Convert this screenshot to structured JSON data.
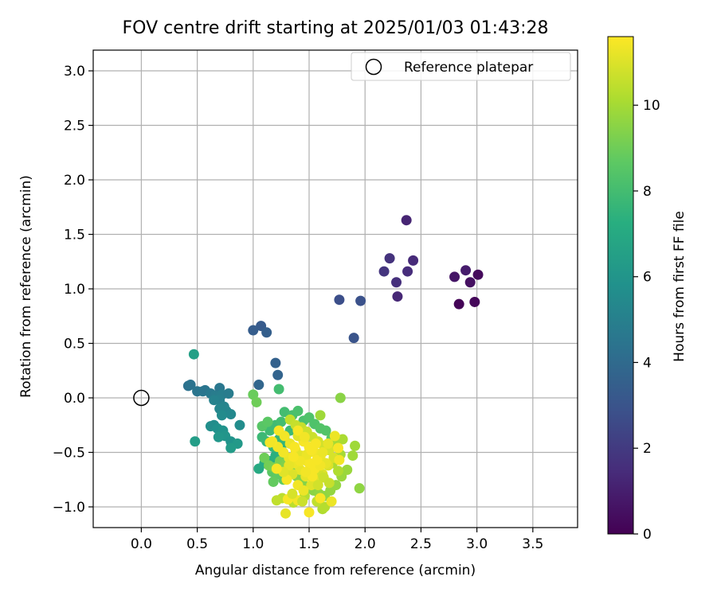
{
  "chart_data": {
    "type": "scatter",
    "title": "FOV centre drift starting at 2025/01/03 01:43:28",
    "xlabel": "Angular distance from reference (arcmin)",
    "ylabel": "Rotation from reference (arcmin)",
    "xlim": [
      -0.43,
      3.9
    ],
    "ylim": [
      -1.19,
      3.19
    ],
    "xticks": [
      0.0,
      0.5,
      1.0,
      1.5,
      2.0,
      2.5,
      3.0,
      3.5
    ],
    "xtick_labels": [
      "0.0",
      "0.5",
      "1.0",
      "1.5",
      "2.0",
      "2.5",
      "3.0",
      "3.5"
    ],
    "yticks": [
      -1.0,
      -0.5,
      0.0,
      0.5,
      1.0,
      1.5,
      2.0,
      2.5,
      3.0
    ],
    "ytick_labels": [
      "−1.0",
      "−0.5",
      "0.0",
      "0.5",
      "1.0",
      "1.5",
      "2.0",
      "2.5",
      "3.0"
    ],
    "grid": true,
    "legend": {
      "position": "top-right",
      "entries": [
        {
          "label": "Reference platepar",
          "marker": "open-circle"
        }
      ]
    },
    "reference_point": {
      "x": 0.0,
      "y": 0.0
    },
    "colorbar": {
      "label": "Hours from first FF file",
      "range": [
        0,
        11.6
      ],
      "ticks": [
        0,
        2,
        4,
        6,
        8,
        10
      ],
      "tick_labels": [
        "0",
        "2",
        "4",
        "6",
        "8",
        "10"
      ],
      "colormap": "viridis"
    },
    "series": [
      {
        "points": [
          [
            2.84,
            0.86,
            0.1
          ],
          [
            2.98,
            0.88,
            0.2
          ],
          [
            3.01,
            1.13,
            0.3
          ],
          [
            2.94,
            1.06,
            0.5
          ],
          [
            2.8,
            1.11,
            0.7
          ],
          [
            2.9,
            1.17,
            0.9
          ],
          [
            2.37,
            1.63,
            1.2
          ],
          [
            2.29,
            0.93,
            1.3
          ],
          [
            2.43,
            1.26,
            1.4
          ],
          [
            2.38,
            1.16,
            1.5
          ],
          [
            2.28,
            1.06,
            1.6
          ],
          [
            2.22,
            1.28,
            1.7
          ],
          [
            2.17,
            1.16,
            1.8
          ],
          [
            1.77,
            0.9,
            2.8
          ],
          [
            1.96,
            0.89,
            2.9
          ],
          [
            1.9,
            0.55,
            3.0
          ],
          [
            1.07,
            0.66,
            3.3
          ],
          [
            1.0,
            0.62,
            3.4
          ],
          [
            1.12,
            0.6,
            3.5
          ],
          [
            1.2,
            0.32,
            3.6
          ],
          [
            1.22,
            0.21,
            3.7
          ],
          [
            1.05,
            0.12,
            3.8
          ],
          [
            0.42,
            0.11,
            4.3
          ],
          [
            0.44,
            0.12,
            4.4
          ],
          [
            0.5,
            0.06,
            4.5
          ],
          [
            0.55,
            0.06,
            4.6
          ],
          [
            0.57,
            0.07,
            4.5
          ],
          [
            0.62,
            0.04,
            4.7
          ],
          [
            0.7,
            0.09,
            4.6
          ],
          [
            0.66,
            0.02,
            4.8
          ],
          [
            0.72,
            0.03,
            4.9
          ],
          [
            0.78,
            0.04,
            4.8
          ],
          [
            0.7,
            -0.02,
            5.0
          ],
          [
            0.65,
            -0.02,
            5.1
          ],
          [
            0.74,
            -0.08,
            5.2
          ],
          [
            0.7,
            -0.1,
            5.3
          ],
          [
            0.76,
            -0.12,
            5.3
          ],
          [
            0.8,
            -0.15,
            5.4
          ],
          [
            0.72,
            -0.16,
            5.5
          ],
          [
            0.88,
            -0.25,
            5.6
          ],
          [
            0.62,
            -0.26,
            5.7
          ],
          [
            0.65,
            -0.25,
            5.6
          ],
          [
            0.68,
            -0.28,
            5.8
          ],
          [
            0.73,
            -0.3,
            5.9
          ],
          [
            0.75,
            -0.35,
            6.0
          ],
          [
            0.69,
            -0.36,
            6.1
          ],
          [
            0.8,
            -0.4,
            5.9
          ],
          [
            0.86,
            -0.42,
            6.2
          ],
          [
            0.8,
            -0.46,
            6.3
          ],
          [
            0.48,
            -0.4,
            6.4
          ],
          [
            0.47,
            0.4,
            6.5
          ],
          [
            1.05,
            -0.65,
            7.0
          ],
          [
            1.1,
            -0.6,
            7.1
          ],
          [
            1.15,
            -0.58,
            7.2
          ],
          [
            1.2,
            -0.53,
            7.3
          ],
          [
            1.25,
            -0.48,
            7.4
          ],
          [
            1.3,
            -0.41,
            7.5
          ],
          [
            1.12,
            -0.4,
            7.5
          ],
          [
            1.18,
            -0.45,
            7.6
          ],
          [
            1.23,
            -0.38,
            7.7
          ],
          [
            1.28,
            -0.35,
            7.7
          ],
          [
            1.33,
            -0.3,
            7.8
          ],
          [
            1.08,
            -0.36,
            7.8
          ],
          [
            1.15,
            -0.3,
            7.9
          ],
          [
            1.2,
            -0.25,
            7.9
          ],
          [
            1.25,
            -0.22,
            8.0
          ],
          [
            1.28,
            -0.13,
            8.0
          ],
          [
            1.35,
            -0.16,
            8.1
          ],
          [
            1.4,
            -0.12,
            8.2
          ],
          [
            1.45,
            -0.21,
            8.2
          ],
          [
            1.5,
            -0.18,
            8.3
          ],
          [
            1.55,
            -0.24,
            8.3
          ],
          [
            1.6,
            -0.28,
            8.4
          ],
          [
            1.65,
            -0.3,
            8.4
          ],
          [
            1.7,
            -0.37,
            8.5
          ],
          [
            1.08,
            -0.26,
            8.5
          ],
          [
            1.13,
            -0.22,
            8.6
          ],
          [
            1.17,
            -0.68,
            8.6
          ],
          [
            1.22,
            -0.7,
            8.7
          ],
          [
            1.27,
            -0.75,
            8.7
          ],
          [
            1.18,
            -0.77,
            8.8
          ],
          [
            1.23,
            0.08,
            8.0
          ],
          [
            1.0,
            0.03,
            8.9
          ],
          [
            1.03,
            -0.04,
            9.0
          ],
          [
            1.1,
            -0.55,
            9.0
          ],
          [
            1.14,
            -0.62,
            9.1
          ],
          [
            1.19,
            -0.64,
            9.2
          ],
          [
            1.24,
            -0.58,
            9.2
          ],
          [
            1.29,
            -0.62,
            9.3
          ],
          [
            1.34,
            -0.68,
            9.3
          ],
          [
            1.39,
            -0.72,
            9.4
          ],
          [
            1.44,
            -0.78,
            9.4
          ],
          [
            1.49,
            -0.83,
            9.5
          ],
          [
            1.54,
            -0.85,
            9.5
          ],
          [
            1.59,
            -0.88,
            9.6
          ],
          [
            1.64,
            -0.9,
            9.6
          ],
          [
            1.69,
            -0.85,
            9.7
          ],
          [
            1.74,
            -0.8,
            9.7
          ],
          [
            1.79,
            -0.72,
            9.8
          ],
          [
            1.84,
            -0.66,
            9.8
          ],
          [
            1.89,
            -0.53,
            9.9
          ],
          [
            1.91,
            -0.44,
            9.9
          ],
          [
            1.95,
            -0.83,
            9.6
          ],
          [
            1.78,
            0.0,
            9.5
          ],
          [
            1.6,
            -0.16,
            9.9
          ],
          [
            1.73,
            -0.43,
            10.0
          ],
          [
            1.78,
            -0.52,
            10.0
          ],
          [
            1.8,
            -0.38,
            10.1
          ],
          [
            1.71,
            -0.6,
            10.1
          ],
          [
            1.76,
            -0.67,
            10.2
          ],
          [
            1.62,
            -1.02,
            10.2
          ],
          [
            1.64,
            -1.0,
            10.3
          ],
          [
            1.46,
            -0.9,
            10.3
          ],
          [
            1.36,
            -0.96,
            10.4
          ],
          [
            1.26,
            -0.92,
            10.4
          ],
          [
            1.21,
            -0.94,
            10.5
          ],
          [
            1.57,
            -0.95,
            10.5
          ],
          [
            1.33,
            -0.2,
            10.5
          ],
          [
            1.38,
            -0.25,
            10.6
          ],
          [
            1.43,
            -0.27,
            10.6
          ],
          [
            1.48,
            -0.31,
            10.7
          ],
          [
            1.53,
            -0.36,
            10.7
          ],
          [
            1.58,
            -0.4,
            10.8
          ],
          [
            1.63,
            -0.44,
            10.8
          ],
          [
            1.68,
            -0.48,
            10.9
          ],
          [
            1.72,
            -0.55,
            10.9
          ],
          [
            1.67,
            -0.62,
            11.0
          ],
          [
            1.62,
            -0.7,
            11.0
          ],
          [
            1.57,
            -0.75,
            11.1
          ],
          [
            1.52,
            -0.8,
            11.1
          ],
          [
            1.47,
            -0.72,
            11.2
          ],
          [
            1.42,
            -0.66,
            11.2
          ],
          [
            1.37,
            -0.6,
            11.3
          ],
          [
            1.32,
            -0.55,
            11.3
          ],
          [
            1.27,
            -0.5,
            11.4
          ],
          [
            1.22,
            -0.45,
            11.4
          ],
          [
            1.17,
            -0.4,
            11.5
          ],
          [
            1.23,
            -0.3,
            11.5
          ],
          [
            1.28,
            -0.35,
            11.4
          ],
          [
            1.33,
            -0.42,
            11.3
          ],
          [
            1.38,
            -0.48,
            11.2
          ],
          [
            1.43,
            -0.53,
            11.1
          ],
          [
            1.48,
            -0.58,
            11.0
          ],
          [
            1.53,
            -0.63,
            10.9
          ],
          [
            1.58,
            -0.68,
            10.8
          ],
          [
            1.63,
            -0.73,
            10.7
          ],
          [
            1.68,
            -0.78,
            10.6
          ],
          [
            1.45,
            -0.4,
            11.5
          ],
          [
            1.5,
            -0.45,
            11.5
          ],
          [
            1.55,
            -0.5,
            11.4
          ],
          [
            1.6,
            -0.55,
            11.3
          ],
          [
            1.65,
            -0.6,
            11.2
          ],
          [
            1.4,
            -0.35,
            11.1
          ],
          [
            1.35,
            -0.7,
            11.0
          ],
          [
            1.3,
            -0.75,
            11.5
          ],
          [
            1.4,
            -0.8,
            11.4
          ],
          [
            1.45,
            -0.85,
            11.3
          ],
          [
            1.5,
            -0.6,
            11.5
          ],
          [
            1.55,
            -0.65,
            11.5
          ],
          [
            1.6,
            -0.62,
            11.4
          ],
          [
            1.48,
            -0.52,
            11.3
          ],
          [
            1.52,
            -0.48,
            11.5
          ],
          [
            1.42,
            -0.58,
            11.4
          ],
          [
            1.37,
            -0.45,
            11.5
          ],
          [
            1.32,
            -0.62,
            11.2
          ],
          [
            1.27,
            -0.68,
            11.1
          ],
          [
            1.57,
            -0.57,
            11.5
          ],
          [
            1.62,
            -0.5,
            11.3
          ],
          [
            1.67,
            -0.42,
            11.2
          ],
          [
            1.53,
            -0.72,
            11.5
          ],
          [
            1.47,
            -0.68,
            11.4
          ],
          [
            1.7,
            -0.95,
            11.3
          ],
          [
            1.6,
            -0.92,
            11.5
          ],
          [
            1.5,
            -1.05,
            11.5
          ],
          [
            1.4,
            -0.94,
            11.4
          ],
          [
            1.31,
            -0.93,
            11.5
          ],
          [
            1.21,
            -0.65,
            11.5
          ],
          [
            1.29,
            -1.06,
            11.2
          ],
          [
            1.15,
            -0.41,
            11.4
          ],
          [
            1.73,
            -0.35,
            11.3
          ],
          [
            1.76,
            -0.46,
            11.5
          ],
          [
            1.77,
            -0.57,
            11.4
          ],
          [
            1.35,
            -0.88,
            10.9
          ],
          [
            1.58,
            -0.8,
            10.8
          ],
          [
            1.44,
            -0.95,
            10.7
          ],
          [
            1.4,
            -0.3,
            11.5
          ],
          [
            1.46,
            -0.36,
            11.4
          ],
          [
            1.36,
            -0.54,
            11.5
          ],
          [
            1.56,
            -0.42,
            11.5
          ]
        ]
      }
    ]
  }
}
